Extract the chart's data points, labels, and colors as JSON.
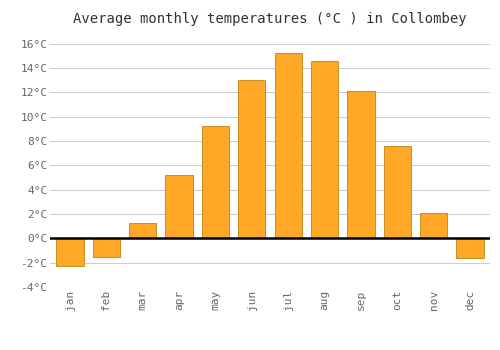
{
  "title": "Average monthly temperatures (°C ) in Collombey",
  "months": [
    "jan",
    "feb",
    "mar",
    "apr",
    "may",
    "jun",
    "jul",
    "aug",
    "sep",
    "oct",
    "nov",
    "dec"
  ],
  "values": [
    -2.3,
    -1.5,
    1.3,
    5.2,
    9.2,
    13.0,
    15.2,
    14.6,
    12.1,
    7.6,
    2.1,
    -1.6
  ],
  "bar_color": "#FFA828",
  "bar_edge_color": "#B8860B",
  "background_color": "#ffffff",
  "grid_color": "#cccccc",
  "ylim": [
    -4,
    17
  ],
  "yticks": [
    -4,
    -2,
    0,
    2,
    4,
    6,
    8,
    10,
    12,
    14,
    16
  ],
  "ytick_labels": [
    "-4°C",
    "-2°C",
    "0°C",
    "2°C",
    "4°C",
    "6°C",
    "8°C",
    "10°C",
    "12°C",
    "14°C",
    "16°C"
  ],
  "title_fontsize": 10,
  "tick_fontsize": 8,
  "axhline_lw": 1.8
}
